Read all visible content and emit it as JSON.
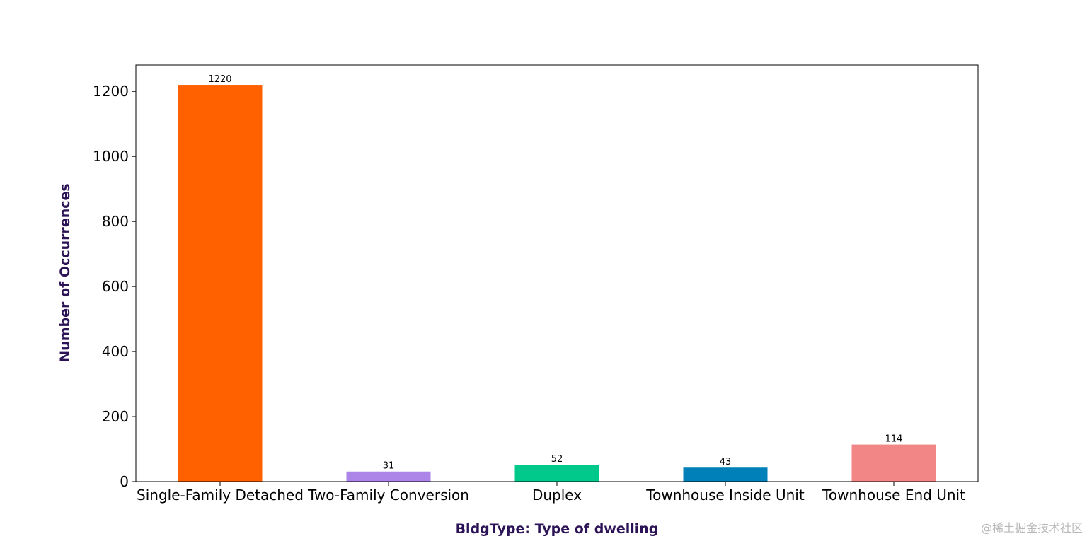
{
  "chart_data": {
    "type": "bar",
    "title": "",
    "xlabel": "BldgType: Type of dwelling",
    "ylabel": "Number of Occurrences",
    "categories": [
      "Single-Family Detached",
      "Two-Family Conversion",
      "Duplex",
      "Townhouse Inside Unit",
      "Townhouse End Unit"
    ],
    "values": [
      1220,
      31,
      52,
      43,
      114
    ],
    "data_labels": [
      "1220",
      "31",
      "52",
      "43",
      "114"
    ],
    "colors": [
      "#ff6100",
      "#ad85e8",
      "#00c98b",
      "#0080b8",
      "#f28585"
    ],
    "ylim": [
      0,
      1281
    ],
    "yticks": [
      0,
      200,
      400,
      600,
      800,
      1000,
      1200
    ],
    "ytick_labels": [
      "0",
      "200",
      "400",
      "600",
      "800",
      "1000",
      "1200"
    ],
    "axis_title_color": "#2b1356",
    "grid": false,
    "legend": "none"
  },
  "watermark": "@稀土掘金技术社区"
}
